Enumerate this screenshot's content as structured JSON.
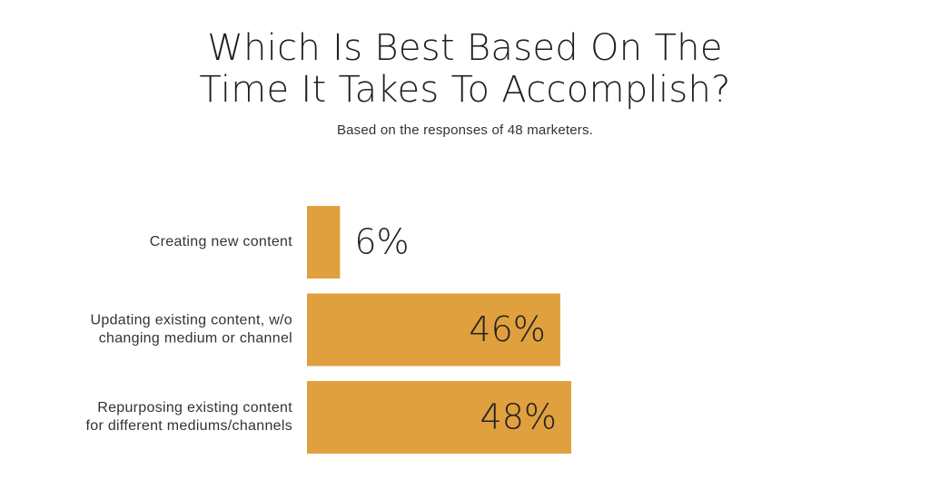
{
  "chart_data": {
    "type": "bar",
    "orientation": "horizontal",
    "title_lines": [
      "Which Is Best Based On The",
      "Time It Takes To Accomplish?"
    ],
    "subtitle": "Based on the responses of 48 marketers.",
    "categories": [
      [
        "Creating new content"
      ],
      [
        "Updating existing content, w/o",
        "changing medium or channel"
      ],
      [
        "Repurposing existing content",
        "for different mediums/channels"
      ]
    ],
    "values": [
      6,
      46,
      48
    ],
    "value_labels": [
      "6%",
      "46%",
      "48%"
    ],
    "xlim": [
      0,
      48
    ],
    "bar_color": "#e0a03e",
    "grid": false,
    "legend": "none"
  }
}
